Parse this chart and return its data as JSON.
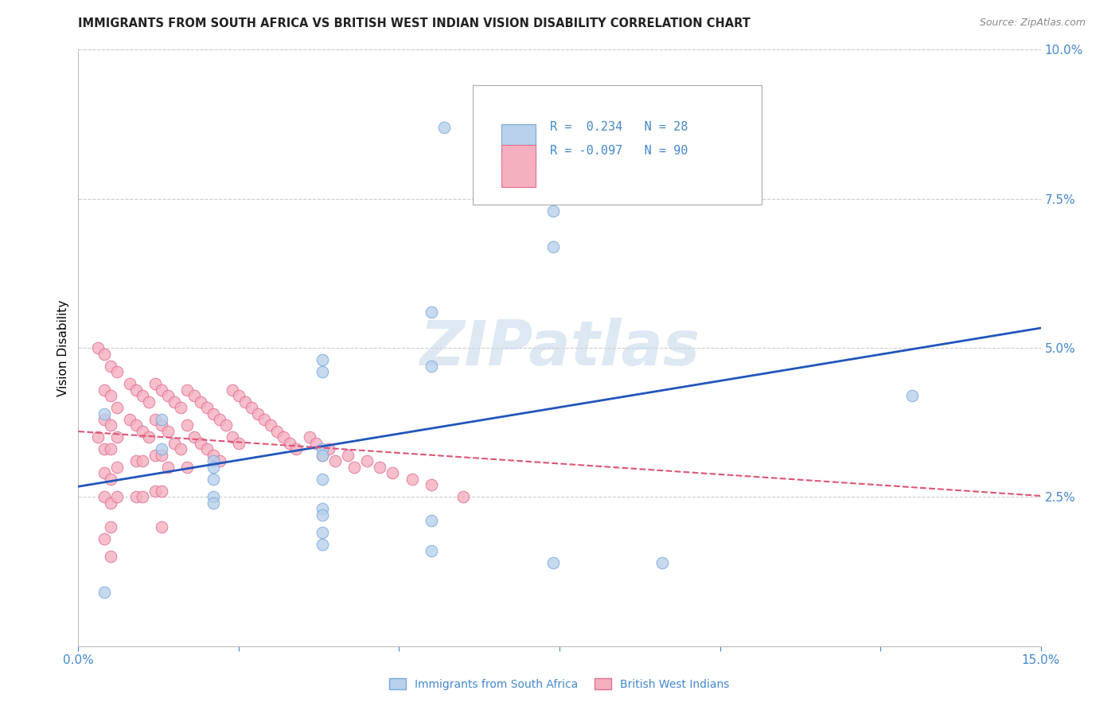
{
  "title": "IMMIGRANTS FROM SOUTH AFRICA VS BRITISH WEST INDIAN VISION DISABILITY CORRELATION CHART",
  "source": "Source: ZipAtlas.com",
  "ylabel": "Vision Disability",
  "xlim": [
    0.0,
    0.15
  ],
  "ylim": [
    0.0,
    0.1
  ],
  "yticks": [
    0.0,
    0.025,
    0.05,
    0.075,
    0.1
  ],
  "yticklabels": [
    "",
    "2.5%",
    "5.0%",
    "7.5%",
    "10.0%"
  ],
  "xtick_positions": [
    0.0,
    0.025,
    0.05,
    0.075,
    0.1,
    0.125,
    0.15
  ],
  "xtick_labels": [
    "0.0%",
    "",
    "",
    "",
    "",
    "",
    "15.0%"
  ],
  "blue_fill": "#b8d0ea",
  "blue_edge": "#7aaadd",
  "pink_fill": "#f5b0c0",
  "pink_edge": "#e07090",
  "blue_line": "#2255bb",
  "pink_line": "#dd5577",
  "grid_color": "#cccccc",
  "tick_color": "#4488cc",
  "watermark": "ZIPatlas",
  "legend_r_blue": "R =  0.234",
  "legend_n_blue": "N = 28",
  "legend_r_pink": "R = -0.097",
  "legend_n_pink": "N = 90",
  "legend_label_blue": "Immigrants from South Africa",
  "legend_label_pink": "British West Indians",
  "blue_x": [
    0.057,
    0.074,
    0.074,
    0.055,
    0.038,
    0.055,
    0.038,
    0.004,
    0.013,
    0.013,
    0.038,
    0.038,
    0.021,
    0.021,
    0.021,
    0.038,
    0.021,
    0.021,
    0.038,
    0.038,
    0.055,
    0.038,
    0.038,
    0.055,
    0.074,
    0.091,
    0.13,
    0.004
  ],
  "blue_y": [
    0.087,
    0.073,
    0.067,
    0.056,
    0.048,
    0.047,
    0.046,
    0.039,
    0.038,
    0.033,
    0.033,
    0.032,
    0.031,
    0.03,
    0.028,
    0.028,
    0.025,
    0.024,
    0.023,
    0.022,
    0.021,
    0.019,
    0.017,
    0.016,
    0.014,
    0.014,
    0.042,
    0.009
  ],
  "pink_x": [
    0.003,
    0.003,
    0.004,
    0.004,
    0.004,
    0.004,
    0.004,
    0.004,
    0.004,
    0.005,
    0.005,
    0.005,
    0.005,
    0.005,
    0.005,
    0.005,
    0.005,
    0.006,
    0.006,
    0.006,
    0.006,
    0.006,
    0.008,
    0.008,
    0.009,
    0.009,
    0.009,
    0.009,
    0.01,
    0.01,
    0.01,
    0.01,
    0.011,
    0.011,
    0.012,
    0.012,
    0.012,
    0.012,
    0.013,
    0.013,
    0.013,
    0.013,
    0.013,
    0.014,
    0.014,
    0.014,
    0.015,
    0.015,
    0.016,
    0.016,
    0.017,
    0.017,
    0.017,
    0.018,
    0.018,
    0.019,
    0.019,
    0.02,
    0.02,
    0.021,
    0.021,
    0.022,
    0.022,
    0.023,
    0.024,
    0.024,
    0.025,
    0.025,
    0.026,
    0.027,
    0.028,
    0.029,
    0.03,
    0.031,
    0.032,
    0.033,
    0.034,
    0.036,
    0.037,
    0.038,
    0.039,
    0.04,
    0.042,
    0.043,
    0.045,
    0.047,
    0.049,
    0.052,
    0.055,
    0.06
  ],
  "pink_y": [
    0.05,
    0.035,
    0.049,
    0.043,
    0.038,
    0.033,
    0.029,
    0.025,
    0.018,
    0.047,
    0.042,
    0.037,
    0.033,
    0.028,
    0.024,
    0.02,
    0.015,
    0.046,
    0.04,
    0.035,
    0.03,
    0.025,
    0.044,
    0.038,
    0.043,
    0.037,
    0.031,
    0.025,
    0.042,
    0.036,
    0.031,
    0.025,
    0.041,
    0.035,
    0.044,
    0.038,
    0.032,
    0.026,
    0.043,
    0.037,
    0.032,
    0.026,
    0.02,
    0.042,
    0.036,
    0.03,
    0.041,
    0.034,
    0.04,
    0.033,
    0.043,
    0.037,
    0.03,
    0.042,
    0.035,
    0.041,
    0.034,
    0.04,
    0.033,
    0.039,
    0.032,
    0.038,
    0.031,
    0.037,
    0.043,
    0.035,
    0.042,
    0.034,
    0.041,
    0.04,
    0.039,
    0.038,
    0.037,
    0.036,
    0.035,
    0.034,
    0.033,
    0.035,
    0.034,
    0.032,
    0.033,
    0.031,
    0.032,
    0.03,
    0.031,
    0.03,
    0.029,
    0.028,
    0.027,
    0.025
  ]
}
